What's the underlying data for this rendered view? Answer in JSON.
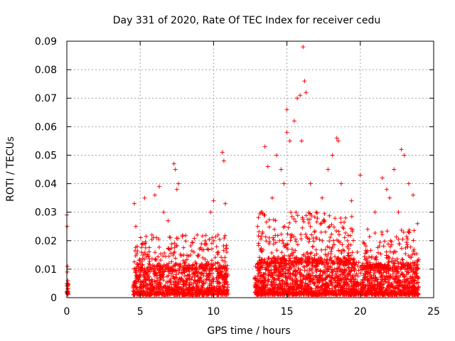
{
  "chart_data": {
    "type": "scatter",
    "title": "Day 331 of 2020, Rate Of TEC Index for receiver cedu",
    "xlabel": "GPS time / hours",
    "ylabel": "ROTI / TECUs",
    "xlim": [
      0,
      25
    ],
    "ylim": [
      0,
      0.09
    ],
    "xticks": [
      0,
      5,
      10,
      15,
      20,
      25
    ],
    "yticks": [
      0,
      0.01,
      0.02,
      0.03,
      0.04,
      0.05,
      0.06,
      0.07,
      0.08,
      0.09
    ],
    "xtick_labels": [
      "0",
      "5",
      "10",
      "15",
      "20",
      "25"
    ],
    "ytick_labels": [
      "0",
      "0.01",
      "0.02",
      "0.03",
      "0.04",
      "0.05",
      "0.06",
      "0.07",
      "0.08",
      "0.09"
    ],
    "grid": true,
    "marker": "plus",
    "color": "#ff0000",
    "series": [
      {
        "x": [
          0.0,
          0.02,
          0.04,
          0.05,
          0.06,
          0.03,
          0.01,
          0.05,
          4.6,
          4.7,
          4.8,
          5.0,
          5.3,
          5.8,
          6.0,
          6.3,
          6.6,
          6.9,
          7.3,
          7.4,
          7.5,
          7.6,
          8.0,
          8.5,
          9.0,
          9.5,
          9.8,
          10.0,
          10.3,
          10.6,
          10.7,
          10.8,
          10.9,
          13.0,
          13.3,
          13.5,
          13.7,
          14.0,
          14.3,
          14.6,
          14.8,
          15.0,
          15.0,
          15.2,
          15.5,
          15.7,
          15.9,
          16.0,
          16.1,
          16.2,
          16.3,
          16.6,
          17.0,
          17.4,
          17.8,
          18.1,
          18.4,
          18.5,
          18.7,
          19.0,
          19.4,
          19.8,
          20.0,
          20.5,
          21.0,
          21.5,
          21.8,
          22.0,
          22.3,
          22.6,
          22.8,
          23.0,
          23.3,
          23.6,
          23.9
        ],
        "y": [
          0.029,
          0.025,
          0.011,
          0.005,
          0.003,
          0.009,
          0.002,
          0.004,
          0.033,
          0.025,
          0.018,
          0.012,
          0.035,
          0.022,
          0.036,
          0.039,
          0.03,
          0.027,
          0.047,
          0.045,
          0.038,
          0.04,
          0.012,
          0.01,
          0.015,
          0.019,
          0.03,
          0.034,
          0.022,
          0.051,
          0.048,
          0.033,
          0.016,
          0.025,
          0.03,
          0.053,
          0.046,
          0.035,
          0.05,
          0.045,
          0.04,
          0.066,
          0.058,
          0.055,
          0.062,
          0.07,
          0.071,
          0.055,
          0.088,
          0.076,
          0.072,
          0.04,
          0.03,
          0.035,
          0.045,
          0.05,
          0.056,
          0.055,
          0.04,
          0.028,
          0.034,
          0.016,
          0.043,
          0.024,
          0.03,
          0.042,
          0.038,
          0.035,
          0.045,
          0.03,
          0.052,
          0.05,
          0.04,
          0.036,
          0.026
        ]
      }
    ],
    "dense_bands": [
      {
        "x": [
          0.0,
          0.1
        ],
        "y": [
          0.001,
          0.006
        ],
        "count": 20
      },
      {
        "x": [
          4.5,
          11.0
        ],
        "y": [
          0.001,
          0.012
        ],
        "count": 950
      },
      {
        "x": [
          4.6,
          11.0
        ],
        "y": [
          0.01,
          0.022
        ],
        "count": 220
      },
      {
        "x": [
          12.8,
          19.9
        ],
        "y": [
          0.001,
          0.014
        ],
        "count": 1200
      },
      {
        "x": [
          13.0,
          19.6
        ],
        "y": [
          0.012,
          0.03
        ],
        "count": 320
      },
      {
        "x": [
          20.0,
          24.0
        ],
        "y": [
          0.001,
          0.012
        ],
        "count": 650
      },
      {
        "x": [
          20.2,
          24.0
        ],
        "y": [
          0.01,
          0.024
        ],
        "count": 180
      }
    ]
  }
}
